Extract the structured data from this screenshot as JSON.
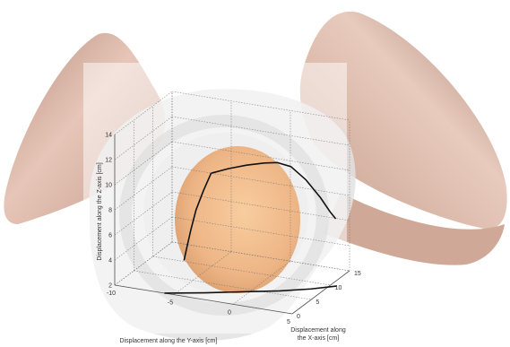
{
  "chart_data": {
    "type": "line",
    "title": "",
    "xlabel": "Displacement along the Y-axis [cm]",
    "ylabel": "Displacement along the X-axis [cm]",
    "zlabel": "Displacement along the Z-axis [cm]",
    "xlabel_lines": [
      "Displacement along",
      "the X-axis [cm]"
    ],
    "y_axis_ticks": [
      "-10",
      "-5",
      "0",
      "5"
    ],
    "x_axis_ticks": [
      "0",
      "5",
      "10",
      "15"
    ],
    "z_axis_ticks": [
      "2",
      "4",
      "6",
      "8",
      "10",
      "12",
      "14"
    ],
    "ylim_y": [
      -10,
      5
    ],
    "xlim_x": [
      0,
      15
    ],
    "zlim": [
      2,
      14
    ],
    "grid": true,
    "series": [
      {
        "color": "#111111",
        "points_yxz": [
          [
            -2.5,
            2,
            11.6
          ],
          [
            -1,
            2,
            12.2
          ],
          [
            0.5,
            2,
            12.7
          ],
          [
            2,
            2,
            13.1
          ],
          [
            3.1,
            2,
            13.3
          ],
          [
            3.6,
            4,
            12.6
          ],
          [
            4.2,
            6,
            11.2
          ],
          [
            4.8,
            8,
            9.4
          ],
          [
            5,
            10,
            7.8
          ],
          [
            4.8,
            12,
            6.8
          ]
        ]
      },
      {
        "color": "#111111",
        "points_yxz": [
          [
            -2.5,
            2,
            11.6
          ],
          [
            -3.3,
            2.5,
            10.0
          ],
          [
            -4.1,
            3,
            8.2
          ],
          [
            -4.7,
            3.5,
            6.4
          ],
          [
            -5.2,
            4,
            4.8
          ],
          [
            -5.6,
            4.5,
            3.6
          ]
        ]
      },
      {
        "color": "#111111",
        "points_yxz": [
          [
            -5.8,
            0,
            2
          ],
          [
            -3,
            2,
            2
          ],
          [
            -0.5,
            4,
            2
          ],
          [
            2,
            6,
            2
          ],
          [
            4,
            8,
            2
          ],
          [
            5.5,
            10,
            2
          ]
        ]
      }
    ],
    "colors": {
      "pelvis": "#d8b2a2",
      "head": "#f2b27c",
      "soft_tissue": "#e4e4e4",
      "trajectory": "#111111"
    }
  }
}
